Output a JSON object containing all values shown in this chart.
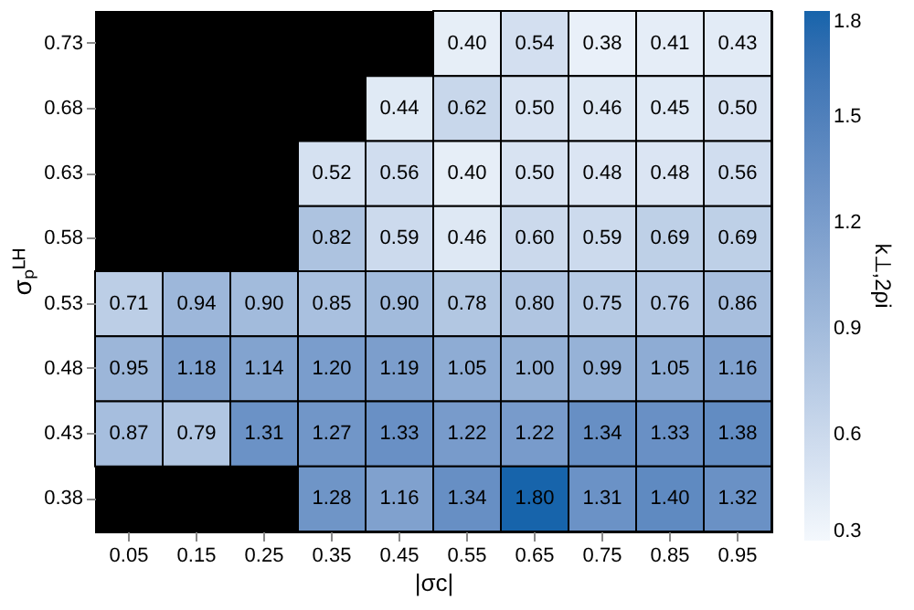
{
  "chart_data": {
    "type": "heatmap",
    "xlabel": "|σc|",
    "ylabel": "σₚᴸᴴ",
    "clabel": "k⊥,2ρi",
    "categories": [
      "0.05",
      "0.15",
      "0.25",
      "0.35",
      "0.45",
      "0.55",
      "0.65",
      "0.75",
      "0.85",
      "0.95"
    ],
    "y_categories": [
      "0.73",
      "0.68",
      "0.63",
      "0.58",
      "0.53",
      "0.48",
      "0.43",
      "0.38"
    ],
    "cells": [
      [
        null,
        null,
        null,
        null,
        null,
        0.4,
        0.54,
        0.38,
        0.41,
        0.43
      ],
      [
        null,
        null,
        null,
        null,
        0.44,
        0.62,
        0.5,
        0.46,
        0.45,
        0.5
      ],
      [
        null,
        null,
        null,
        0.52,
        0.56,
        0.4,
        0.5,
        0.48,
        0.48,
        0.56
      ],
      [
        null,
        null,
        null,
        0.82,
        0.59,
        0.46,
        0.6,
        0.59,
        0.69,
        0.69
      ],
      [
        0.71,
        0.94,
        0.9,
        0.85,
        0.9,
        0.78,
        0.8,
        0.75,
        0.76,
        0.86
      ],
      [
        0.95,
        1.18,
        1.14,
        1.2,
        1.19,
        1.05,
        1.0,
        0.99,
        1.05,
        1.16
      ],
      [
        0.87,
        0.79,
        1.31,
        1.27,
        1.33,
        1.22,
        1.22,
        1.34,
        1.33,
        1.38
      ],
      [
        null,
        null,
        null,
        1.28,
        1.16,
        1.34,
        1.8,
        1.31,
        1.4,
        1.32
      ]
    ],
    "cell_labels": [
      [
        null,
        null,
        null,
        null,
        null,
        "0.40",
        "0.54",
        "0.38",
        "0.41",
        "0.43"
      ],
      [
        null,
        null,
        null,
        null,
        "0.44",
        "0.62",
        "0.50",
        "0.46",
        "0.45",
        "0.50"
      ],
      [
        null,
        null,
        null,
        "0.52",
        "0.56",
        "0.40",
        "0.50",
        "0.48",
        "0.48",
        "0.56"
      ],
      [
        null,
        null,
        null,
        "0.82",
        "0.59",
        "0.46",
        "0.60",
        "0.59",
        "0.69",
        "0.69"
      ],
      [
        "0.71",
        "0.94",
        "0.90",
        "0.85",
        "0.90",
        "0.78",
        "0.80",
        "0.75",
        "0.76",
        "0.86"
      ],
      [
        "0.95",
        "1.18",
        "1.14",
        "1.20",
        "1.19",
        "1.05",
        "1.00",
        "0.99",
        "1.05",
        "1.16"
      ],
      [
        "0.87",
        "0.79",
        "1.31",
        "1.27",
        "1.33",
        "1.22",
        "1.22",
        "1.34",
        "1.33",
        "1.38"
      ],
      [
        null,
        null,
        null,
        "1.28",
        "1.16",
        "1.34",
        "1.80",
        "1.31",
        "1.40",
        "1.32"
      ]
    ],
    "clim": [
      0.3,
      1.8
    ],
    "cticks": [
      0.3,
      0.6,
      0.9,
      1.2,
      1.5,
      1.8
    ]
  }
}
